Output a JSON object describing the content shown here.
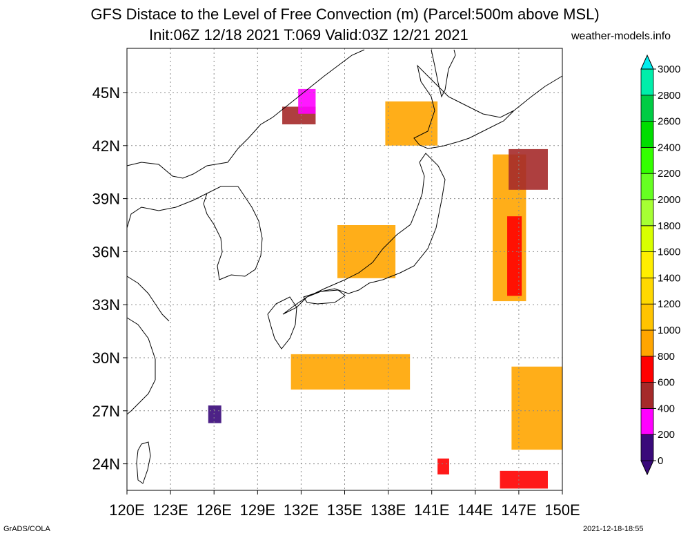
{
  "header": {
    "title_line1": "GFS Distace to the Level of Free Convection (m) (Parcel:500m above MSL)",
    "title_line2": "Init:06Z 12/18 2021 T:069 Valid:03Z 12/21 2021",
    "site": "weather-models.info"
  },
  "footer": {
    "software": "GrADS/COLA",
    "timestamp": "2021-12-18-18:55"
  },
  "map": {
    "lon_range": [
      120,
      150
    ],
    "lat_range": [
      22.5,
      47.5
    ],
    "lat_ticks": [
      {
        "value": 24,
        "label": "24N"
      },
      {
        "value": 27,
        "label": "27N"
      },
      {
        "value": 30,
        "label": "30N"
      },
      {
        "value": 33,
        "label": "33N"
      },
      {
        "value": 36,
        "label": "36N"
      },
      {
        "value": 39,
        "label": "39N"
      },
      {
        "value": 42,
        "label": "42N"
      },
      {
        "value": 45,
        "label": "45N"
      }
    ],
    "lon_ticks": [
      {
        "value": 120,
        "label": "120E"
      },
      {
        "value": 123,
        "label": "123E"
      },
      {
        "value": 126,
        "label": "126E"
      },
      {
        "value": 129,
        "label": "129E"
      },
      {
        "value": 132,
        "label": "132E"
      },
      {
        "value": 135,
        "label": "135E"
      },
      {
        "value": 138,
        "label": "138E"
      },
      {
        "value": 141,
        "label": "141E"
      },
      {
        "value": 144,
        "label": "144E"
      },
      {
        "value": 147,
        "label": "147E"
      },
      {
        "value": 150,
        "label": "150E"
      }
    ],
    "grid": true
  },
  "colorbar": {
    "levels": [
      "0",
      "200",
      "400",
      "600",
      "800",
      "1000",
      "1200",
      "1400",
      "1600",
      "1800",
      "2000",
      "2200",
      "2400",
      "2600",
      "2800",
      "3000"
    ],
    "colors": [
      "#3a0a7a",
      "#ff00ff",
      "#a52a2a",
      "#ff0000",
      "#ffa500",
      "#ffc400",
      "#ffd800",
      "#ffee00",
      "#d8ff00",
      "#a6ff33",
      "#66ff22",
      "#33ff00",
      "#00dd00",
      "#00cc44",
      "#00eeaa",
      "#00eeee"
    ]
  },
  "patches": [
    {
      "color": "#ffa500",
      "lon": [
        134.5,
        138.5
      ],
      "lat": [
        34.5,
        37.5
      ],
      "note": "Sea of Japan coast band"
    },
    {
      "color": "#ffa500",
      "lon": [
        145.2,
        147.5
      ],
      "lat": [
        33.2,
        41.5
      ],
      "note": "East of Honshu band"
    },
    {
      "color": "#ff0000",
      "lon": [
        146.2,
        147.2
      ],
      "lat": [
        33.5,
        38.0
      ],
      "note": "East red streak"
    },
    {
      "color": "#a52a2a",
      "lon": [
        146.3,
        149.0
      ],
      "lat": [
        39.5,
        41.8
      ],
      "note": "NE brown"
    },
    {
      "color": "#ffa500",
      "lon": [
        131.3,
        139.5
      ],
      "lat": [
        28.2,
        30.2
      ],
      "note": "South band"
    },
    {
      "color": "#ffa500",
      "lon": [
        137.8,
        141.4
      ],
      "lat": [
        42.0,
        44.5
      ],
      "note": "Hokkaido west"
    },
    {
      "color": "#a52a2a",
      "lon": [
        130.7,
        133.0
      ],
      "lat": [
        43.2,
        44.2
      ],
      "note": "Primorye brown"
    },
    {
      "color": "#ff00ff",
      "lon": [
        131.8,
        133.0
      ],
      "lat": [
        43.8,
        45.2
      ],
      "note": "Primorye magenta"
    },
    {
      "color": "#ff0000",
      "lon": [
        145.7,
        149.0
      ],
      "lat": [
        22.6,
        23.6
      ],
      "note": "South-east red"
    },
    {
      "color": "#ffa500",
      "lon": [
        146.5,
        150.0
      ],
      "lat": [
        24.8,
        29.5
      ],
      "note": "South-east orange"
    },
    {
      "color": "#ff0000",
      "lon": [
        141.4,
        142.2
      ],
      "lat": [
        23.4,
        24.3
      ],
      "note": "Red near Bonin"
    },
    {
      "color": "#3a0a7a",
      "lon": [
        125.6,
        126.5
      ],
      "lat": [
        26.3,
        27.3
      ],
      "note": "Okinawa purple"
    }
  ]
}
